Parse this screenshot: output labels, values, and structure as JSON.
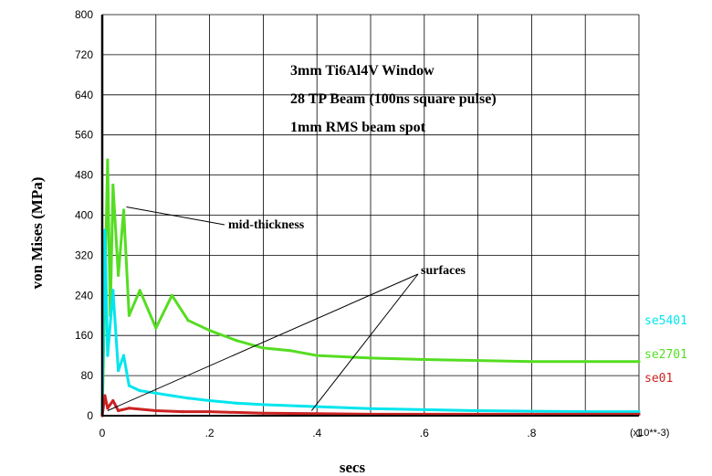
{
  "chart_data": {
    "type": "line",
    "xlabel": "secs",
    "ylabel": "von Mises (MPa)",
    "x_multiplier_label": "(x10**-3)",
    "xlim": [
      0,
      1
    ],
    "ylim": [
      0,
      800
    ],
    "x_ticks": [
      0,
      0.1,
      0.2,
      0.3,
      0.4,
      0.5,
      0.6,
      0.7,
      0.8,
      0.9,
      1.0
    ],
    "x_tick_labels": [
      "0",
      "",
      ".2",
      "",
      ".4",
      "",
      ".6",
      "",
      ".8",
      "",
      "1"
    ],
    "y_ticks": [
      0,
      80,
      160,
      240,
      320,
      400,
      480,
      560,
      640,
      720,
      800
    ],
    "y_tick_labels": [
      "0",
      "80",
      "160",
      "240",
      "320",
      "400",
      "480",
      "560",
      "640",
      "720",
      "800"
    ],
    "grid": true,
    "legend_position": "right",
    "annotation_box": [
      "3mm Ti6Al4V Window",
      "28 TP Beam (100ns square pulse)",
      "1mm RMS beam spot"
    ],
    "annotations": [
      {
        "text": "mid-thickness",
        "points_to": [
          [
            0.045,
            420
          ]
        ]
      },
      {
        "text": "surfaces",
        "points_to": [
          [
            0.01,
            10
          ],
          [
            0.39,
            10
          ]
        ]
      }
    ],
    "series": [
      {
        "name": "se5401",
        "color": "#00e5ee",
        "x": [
          0.0,
          0.005,
          0.01,
          0.02,
          0.03,
          0.04,
          0.05,
          0.07,
          0.1,
          0.13,
          0.16,
          0.2,
          0.25,
          0.3,
          0.4,
          0.5,
          0.6,
          0.7,
          0.8,
          0.9,
          1.0
        ],
        "y": [
          0,
          370,
          120,
          250,
          90,
          120,
          60,
          50,
          45,
          40,
          35,
          30,
          25,
          22,
          18,
          14,
          12,
          10,
          9,
          8,
          8
        ]
      },
      {
        "name": "se2701",
        "color": "#55dd22",
        "x": [
          0.0,
          0.005,
          0.01,
          0.015,
          0.02,
          0.03,
          0.04,
          0.05,
          0.07,
          0.1,
          0.13,
          0.16,
          0.2,
          0.25,
          0.3,
          0.35,
          0.4,
          0.5,
          0.6,
          0.7,
          0.8,
          0.9,
          1.0
        ],
        "y": [
          0,
          250,
          510,
          200,
          460,
          280,
          410,
          200,
          250,
          175,
          240,
          190,
          170,
          150,
          135,
          130,
          120,
          115,
          112,
          110,
          108,
          108,
          108
        ]
      },
      {
        "name": "se01",
        "color": "#cc2222",
        "x": [
          0.0,
          0.005,
          0.01,
          0.02,
          0.03,
          0.05,
          0.1,
          0.15,
          0.2,
          0.3,
          0.4,
          0.5,
          0.6,
          0.7,
          0.8,
          0.9,
          1.0
        ],
        "y": [
          0,
          40,
          15,
          30,
          10,
          15,
          10,
          8,
          8,
          5,
          4,
          3,
          3,
          3,
          3,
          3,
          3
        ]
      }
    ]
  }
}
